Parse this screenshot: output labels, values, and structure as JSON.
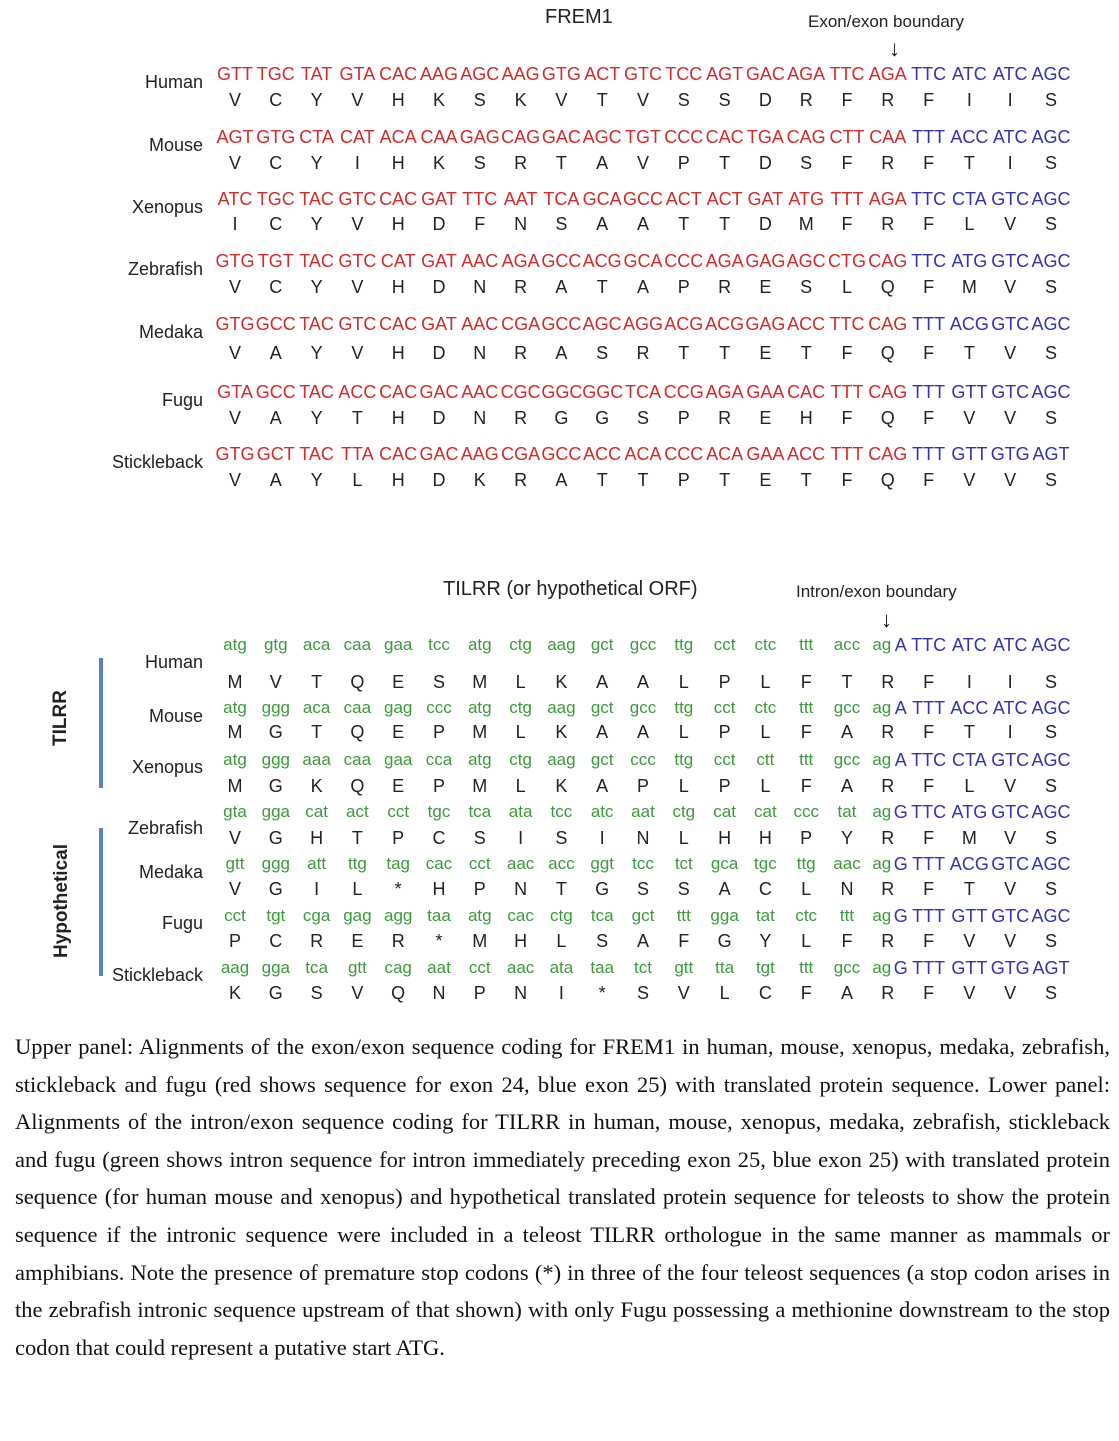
{
  "upper_panel": {
    "title": "FREM1",
    "boundary_label": "Exon/exon boundary",
    "arrow": "↓",
    "rows": [
      {
        "species": "Human",
        "codons": [
          "GTT",
          "TGC",
          "TAT",
          "GTA",
          "CAC",
          "AAG",
          "AGC",
          "AAG",
          "GTG",
          "ACT",
          "GTC",
          "TCC",
          "AGT",
          "GAC",
          "AGA",
          "TTC",
          "AGA",
          "TTC",
          "ATC",
          "ATC",
          "AGC"
        ],
        "aa": [
          "V",
          "C",
          "Y",
          "V",
          "H",
          "K",
          "S",
          "K",
          "V",
          "T",
          "V",
          "S",
          "S",
          "D",
          "R",
          "F",
          "R",
          "F",
          "I",
          "I",
          "S"
        ]
      },
      {
        "species": "Mouse",
        "codons": [
          "AGT",
          "GTG",
          "CTA",
          "CAT",
          "ACA",
          "CAA",
          "GAG",
          "CAG",
          "GAC",
          "AGC",
          "TGT",
          "CCC",
          "CAC",
          "TGA",
          "CAG",
          "CTT",
          "CAA",
          "TTT",
          "ACC",
          "ATC",
          "AGC"
        ],
        "aa": [
          "V",
          "C",
          "Y",
          "I",
          "H",
          "K",
          "S",
          "R",
          "T",
          "A",
          "V",
          "P",
          "T",
          "D",
          "S",
          "F",
          "R",
          "F",
          "T",
          "I",
          "S"
        ]
      },
      {
        "species": "Xenopus",
        "codons": [
          "ATC",
          "TGC",
          "TAC",
          "GTC",
          "CAC",
          "GAT",
          "TTC",
          "AAT",
          "TCA",
          "GCA",
          "GCC",
          "ACT",
          "ACT",
          "GAT",
          "ATG",
          "TTT",
          "AGA",
          "TTC",
          "CTA",
          "GTC",
          "AGC"
        ],
        "aa": [
          "I",
          "C",
          "Y",
          "V",
          "H",
          "D",
          "F",
          "N",
          "S",
          "A",
          "A",
          "T",
          "T",
          "D",
          "M",
          "F",
          "R",
          "F",
          "L",
          "V",
          "S"
        ]
      },
      {
        "species": "Zebrafish",
        "codons": [
          "GTG",
          "TGT",
          "TAC",
          "GTC",
          "CAT",
          "GAT",
          "AAC",
          "AGA",
          "GCC",
          "ACG",
          "GCA",
          "CCC",
          "AGA",
          "GAG",
          "AGC",
          "CTG",
          "CAG",
          "TTC",
          "ATG",
          "GTC",
          "AGC"
        ],
        "aa": [
          "V",
          "C",
          "Y",
          "V",
          "H",
          "D",
          "N",
          "R",
          "A",
          "T",
          "A",
          "P",
          "R",
          "E",
          "S",
          "L",
          "Q",
          "F",
          "M",
          "V",
          "S"
        ]
      },
      {
        "species": "Medaka",
        "codons": [
          "GTG",
          "GCC",
          "TAC",
          "GTC",
          "CAC",
          "GAT",
          "AAC",
          "CGA",
          "GCC",
          "AGC",
          "AGG",
          "ACG",
          "ACG",
          "GAG",
          "ACC",
          "TTC",
          "CAG",
          "TTT",
          "ACG",
          "GTC",
          "AGC"
        ],
        "aa": [
          "V",
          "A",
          "Y",
          "V",
          "H",
          "D",
          "N",
          "R",
          "A",
          "S",
          "R",
          "T",
          "T",
          "E",
          "T",
          "F",
          "Q",
          "F",
          "T",
          "V",
          "S"
        ]
      },
      {
        "species": "Fugu",
        "codons": [
          "GTA",
          "GCC",
          "TAC",
          "ACC",
          "CAC",
          "GAC",
          "AAC",
          "CGC",
          "GGC",
          "GGC",
          "TCA",
          "CCG",
          "AGA",
          "GAA",
          "CAC",
          "TTT",
          "CAG",
          "TTT",
          "GTT",
          "GTC",
          "AGC"
        ],
        "aa": [
          "V",
          "A",
          "Y",
          "T",
          "H",
          "D",
          "N",
          "R",
          "G",
          "G",
          "S",
          "P",
          "R",
          "E",
          "H",
          "F",
          "Q",
          "F",
          "V",
          "V",
          "S"
        ]
      },
      {
        "species": "Stickleback",
        "codons": [
          "GTG",
          "GCT",
          "TAC",
          "TTA",
          "CAC",
          "GAC",
          "AAG",
          "CGA",
          "GCC",
          "ACC",
          "ACA",
          "CCC",
          "ACA",
          "GAA",
          "ACC",
          "TTT",
          "CAG",
          "TTT",
          "GTT",
          "GTG",
          "AGT"
        ],
        "aa": [
          "V",
          "A",
          "Y",
          "L",
          "H",
          "D",
          "K",
          "R",
          "A",
          "T",
          "T",
          "P",
          "T",
          "E",
          "T",
          "F",
          "Q",
          "F",
          "V",
          "V",
          "S"
        ]
      }
    ]
  },
  "lower_panel": {
    "title": "TILRR (or hypothetical ORF)",
    "boundary_label": "Intron/exon boundary",
    "arrow": "↓",
    "group_labels": {
      "tilrr": "TILRR",
      "hypothetical": "Hypothetical"
    },
    "rows": [
      {
        "species": "Human",
        "codons": [
          "atg",
          "gtg",
          "aca",
          "caa",
          "gaa",
          "tcc",
          "atg",
          "ctg",
          "aag",
          "gct",
          "gcc",
          "ttg",
          "cct",
          "ctc",
          "ttt",
          "acc",
          "ag",
          "A",
          "TTC",
          "ATC",
          "ATC",
          "AGC"
        ],
        "aa": [
          "M",
          "V",
          "T",
          "Q",
          "E",
          "S",
          "M",
          "L",
          "K",
          "A",
          "A",
          "L",
          "P",
          "L",
          "F",
          "T",
          "R",
          "F",
          "I",
          "I",
          "S"
        ]
      },
      {
        "species": "Mouse",
        "codons": [
          "atg",
          "ggg",
          "aca",
          "caa",
          "gag",
          "ccc",
          "atg",
          "ctg",
          "aag",
          "gct",
          "gcc",
          "ttg",
          "cct",
          "ctc",
          "ttt",
          "gcc",
          "ag",
          "A",
          "TTT",
          "ACC",
          "ATC",
          "AGC"
        ],
        "aa": [
          "M",
          "G",
          "T",
          "Q",
          "E",
          "P",
          "M",
          "L",
          "K",
          "A",
          "A",
          "L",
          "P",
          "L",
          "F",
          "A",
          "R",
          "F",
          "T",
          "I",
          "S"
        ]
      },
      {
        "species": "Xenopus",
        "codons": [
          "atg",
          "ggg",
          "aaa",
          "caa",
          "gaa",
          "cca",
          "atg",
          "ctg",
          "aag",
          "gct",
          "ccc",
          "ttg",
          "cct",
          "ctt",
          "ttt",
          "gcc",
          "ag",
          "A",
          "TTC",
          "CTA",
          "GTC",
          "AGC"
        ],
        "aa": [
          "M",
          "G",
          "K",
          "Q",
          "E",
          "P",
          "M",
          "L",
          "K",
          "A",
          "P",
          "L",
          "P",
          "L",
          "F",
          "A",
          "R",
          "F",
          "L",
          "V",
          "S"
        ]
      },
      {
        "species": "Zebrafish",
        "codons": [
          "gta",
          "gga",
          "cat",
          "act",
          "cct",
          "tgc",
          "tca",
          "ata",
          "tcc",
          "atc",
          "aat",
          "ctg",
          "cat",
          "cat",
          "ccc",
          "tat",
          "ag",
          "G",
          "TTC",
          "ATG",
          "GTC",
          "AGC"
        ],
        "aa": [
          "V",
          "G",
          "H",
          "T",
          "P",
          "C",
          "S",
          "I",
          "S",
          "I",
          "N",
          "L",
          "H",
          "H",
          "P",
          "Y",
          "R",
          "F",
          "M",
          "V",
          "S"
        ]
      },
      {
        "species": "Medaka",
        "codons": [
          "gtt",
          "ggg",
          "att",
          "ttg",
          "tag",
          "cac",
          "cct",
          "aac",
          "acc",
          "ggt",
          "tcc",
          "tct",
          "gca",
          "tgc",
          "ttg",
          "aac",
          "ag",
          "G",
          "TTT",
          "ACG",
          "GTC",
          "AGC"
        ],
        "aa": [
          "V",
          "G",
          "I",
          "L",
          "*",
          "H",
          "P",
          "N",
          "T",
          "G",
          "S",
          "S",
          "A",
          "C",
          "L",
          "N",
          "R",
          "F",
          "T",
          "V",
          "S"
        ]
      },
      {
        "species": "Fugu",
        "codons": [
          "cct",
          "tgt",
          "cga",
          "gag",
          "agg",
          "taa",
          "atg",
          "cac",
          "ctg",
          "tca",
          "gct",
          "ttt",
          "gga",
          "tat",
          "ctc",
          "ttt",
          "ag",
          "G",
          "TTT",
          "GTT",
          "GTC",
          "AGC"
        ],
        "aa": [
          "P",
          "C",
          "R",
          "E",
          "R",
          "*",
          "M",
          "H",
          "L",
          "S",
          "A",
          "F",
          "G",
          "Y",
          "L",
          "F",
          "R",
          "F",
          "V",
          "V",
          "S"
        ]
      },
      {
        "species": "Stickleback",
        "codons": [
          "aag",
          "gga",
          "tca",
          "gtt",
          "cag",
          "aat",
          "cct",
          "aac",
          "ata",
          "taa",
          "tct",
          "gtt",
          "tta",
          "tgt",
          "ttt",
          "gcc",
          "ag",
          "G",
          "TTT",
          "GTT",
          "GTG",
          "AGT"
        ],
        "aa": [
          "K",
          "G",
          "S",
          "V",
          "Q",
          "N",
          "P",
          "N",
          "I",
          "*",
          "S",
          "V",
          "L",
          "C",
          "F",
          "A",
          "R",
          "F",
          "V",
          "V",
          "S"
        ]
      }
    ]
  },
  "caption": "Upper panel: Alignments of the exon/exon sequence coding for FREM1 in human, mouse, xenopus, medaka, zebrafish, stickleback and fugu (red shows sequence for exon 24, blue exon 25) with translated protein sequence. Lower panel: Alignments of the intron/exon sequence coding for TILRR in human, mouse, xenopus, medaka, zebrafish, stickleback and fugu (green shows intron sequence for intron immediately preceding exon 25, blue exon 25) with translated protein sequence (for human mouse and xenopus) and hypothetical translated protein sequence for teleosts to show the protein sequence if the intronic sequence were included in a teleost TILRR orthologue in the same manner as mammals or amphibians. Note the presence of premature stop codons (*) in three of the four teleost sequences (a stop codon arises in the zebrafish intronic sequence upstream of that shown) with only Fugu possessing a methionine downstream to the stop codon that could represent a putative start ATG.",
  "colors": {
    "exon24": "#d42a2a",
    "exon25": "#2f34b4",
    "intron": "#3c9a3c",
    "group_bar": "#5b7fc7"
  }
}
